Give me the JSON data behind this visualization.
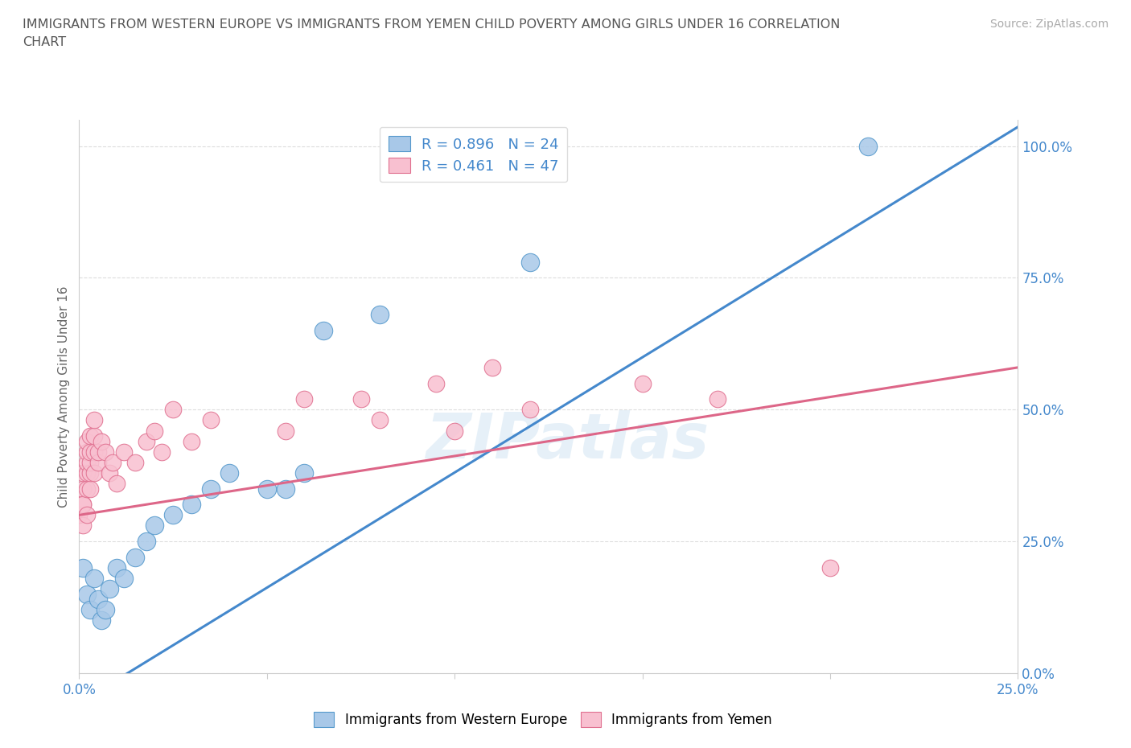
{
  "title_line1": "IMMIGRANTS FROM WESTERN EUROPE VS IMMIGRANTS FROM YEMEN CHILD POVERTY AMONG GIRLS UNDER 16 CORRELATION",
  "title_line2": "CHART",
  "source": "Source: ZipAtlas.com",
  "ylabel": "Child Poverty Among Girls Under 16",
  "xlim": [
    0.0,
    0.25
  ],
  "ylim": [
    0.0,
    1.05
  ],
  "xticks": [
    0.0,
    0.05,
    0.1,
    0.15,
    0.2,
    0.25
  ],
  "yticks": [
    0.0,
    0.25,
    0.5,
    0.75,
    1.0
  ],
  "ytick_labels": [
    "0.0%",
    "25.0%",
    "50.0%",
    "75.0%",
    "100.0%"
  ],
  "xtick_labels": [
    "0.0%",
    "",
    "",
    "",
    "",
    "25.0%"
  ],
  "background_color": "#ffffff",
  "grid_color": "#dddddd",
  "watermark": "ZIPatlas",
  "blue_color": "#a8c8e8",
  "blue_edge_color": "#5599cc",
  "pink_color": "#f8c0d0",
  "pink_edge_color": "#e07090",
  "blue_line_color": "#4488cc",
  "pink_line_color": "#dd6688",
  "tick_color": "#4488cc",
  "blue_R": 0.896,
  "blue_N": 24,
  "pink_R": 0.461,
  "pink_N": 47,
  "blue_scatter": [
    [
      0.001,
      0.2
    ],
    [
      0.002,
      0.15
    ],
    [
      0.003,
      0.12
    ],
    [
      0.004,
      0.18
    ],
    [
      0.005,
      0.14
    ],
    [
      0.006,
      0.1
    ],
    [
      0.007,
      0.12
    ],
    [
      0.008,
      0.16
    ],
    [
      0.01,
      0.2
    ],
    [
      0.012,
      0.18
    ],
    [
      0.015,
      0.22
    ],
    [
      0.018,
      0.25
    ],
    [
      0.02,
      0.28
    ],
    [
      0.025,
      0.3
    ],
    [
      0.03,
      0.32
    ],
    [
      0.035,
      0.35
    ],
    [
      0.04,
      0.38
    ],
    [
      0.05,
      0.35
    ],
    [
      0.055,
      0.35
    ],
    [
      0.06,
      0.38
    ],
    [
      0.065,
      0.65
    ],
    [
      0.08,
      0.68
    ],
    [
      0.12,
      0.78
    ],
    [
      0.21,
      1.0
    ]
  ],
  "pink_scatter": [
    [
      0.0,
      0.3
    ],
    [
      0.001,
      0.28
    ],
    [
      0.001,
      0.32
    ],
    [
      0.001,
      0.35
    ],
    [
      0.001,
      0.38
    ],
    [
      0.001,
      0.32
    ],
    [
      0.002,
      0.3
    ],
    [
      0.002,
      0.35
    ],
    [
      0.002,
      0.38
    ],
    [
      0.002,
      0.4
    ],
    [
      0.002,
      0.42
    ],
    [
      0.002,
      0.44
    ],
    [
      0.003,
      0.35
    ],
    [
      0.003,
      0.38
    ],
    [
      0.003,
      0.4
    ],
    [
      0.003,
      0.42
    ],
    [
      0.003,
      0.45
    ],
    [
      0.004,
      0.38
    ],
    [
      0.004,
      0.42
    ],
    [
      0.004,
      0.45
    ],
    [
      0.004,
      0.48
    ],
    [
      0.005,
      0.4
    ],
    [
      0.005,
      0.42
    ],
    [
      0.006,
      0.44
    ],
    [
      0.007,
      0.42
    ],
    [
      0.008,
      0.38
    ],
    [
      0.009,
      0.4
    ],
    [
      0.01,
      0.36
    ],
    [
      0.012,
      0.42
    ],
    [
      0.015,
      0.4
    ],
    [
      0.018,
      0.44
    ],
    [
      0.02,
      0.46
    ],
    [
      0.022,
      0.42
    ],
    [
      0.025,
      0.5
    ],
    [
      0.03,
      0.44
    ],
    [
      0.035,
      0.48
    ],
    [
      0.055,
      0.46
    ],
    [
      0.06,
      0.52
    ],
    [
      0.075,
      0.52
    ],
    [
      0.08,
      0.48
    ],
    [
      0.095,
      0.55
    ],
    [
      0.1,
      0.46
    ],
    [
      0.12,
      0.5
    ],
    [
      0.15,
      0.55
    ],
    [
      0.17,
      0.52
    ],
    [
      0.2,
      0.2
    ],
    [
      0.11,
      0.58
    ]
  ],
  "blue_line_x": [
    -0.01,
    0.26
  ],
  "blue_line_y": [
    -0.1,
    1.08
  ],
  "pink_line_x": [
    0.0,
    0.25
  ],
  "pink_line_y": [
    0.3,
    0.58
  ]
}
